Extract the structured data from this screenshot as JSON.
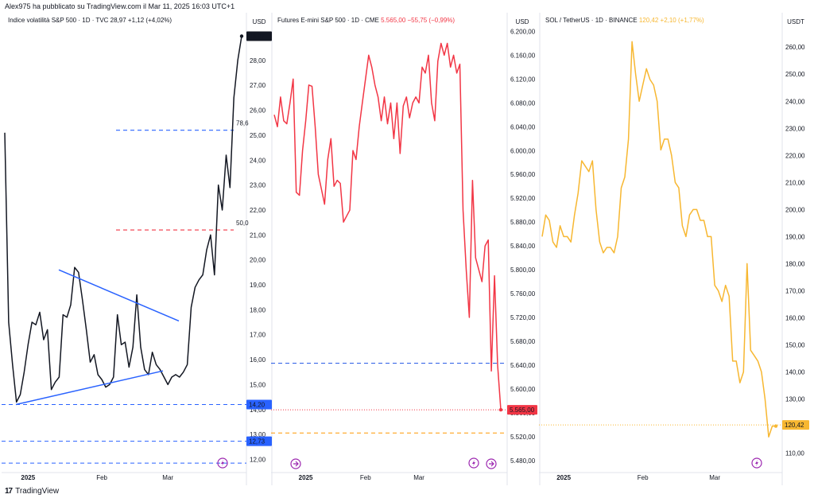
{
  "caption": "Alex975 ha pubblicato su TradingView.com il Mar 11, 2025 16:03 UTC+1",
  "footer": {
    "brand": "TradingView"
  },
  "chart_data": [
    {
      "type": "line",
      "title": "Indice volatilità S&P 500 · 1D · TVC",
      "last_value": "28,97",
      "change": "+1,12 (+4,02%)",
      "currency": "USD",
      "line_color": "#131722",
      "ylim": [
        11.6,
        29.4
      ],
      "y_ticks": [
        "28,00",
        "27,00",
        "26,00",
        "25,00",
        "24,00",
        "23,00",
        "22,00",
        "21,00",
        "20,00",
        "19,00",
        "18,00",
        "17,00",
        "16,00",
        "15,00",
        "14,00",
        "13,00",
        "12,00"
      ],
      "y_tick_values": [
        28,
        27,
        26,
        25,
        24,
        23,
        22,
        21,
        20,
        19,
        18,
        17,
        16,
        15,
        14,
        13,
        12
      ],
      "x_ticks": [
        {
          "label": "2025",
          "i": 6
        },
        {
          "label": "Feb",
          "i": 25
        },
        {
          "label": "Mar",
          "i": 42
        }
      ],
      "series": [
        {
          "values": [
            25.1,
            17.5,
            15.8,
            14.3,
            14.6,
            15.5,
            16.6,
            17.5,
            17.4,
            17.9,
            16.8,
            17.2,
            14.8,
            15.1,
            15.3,
            17.8,
            17.7,
            18.2,
            19.7,
            19.5,
            18.4,
            17.2,
            15.9,
            16.2,
            15.4,
            15.2,
            14.9,
            15.0,
            15.3,
            17.8,
            16.6,
            16.7,
            15.7,
            16.5,
            18.6,
            16.5,
            15.6,
            15.4,
            16.3,
            15.8,
            15.6,
            15.3,
            15.0,
            15.3,
            15.4,
            15.3,
            15.5,
            15.8,
            18.1,
            18.9,
            19.2,
            19.4,
            20.4,
            21.0,
            19.4,
            23.0,
            22.0,
            24.2,
            22.9,
            26.5,
            28.0,
            28.97
          ]
        }
      ],
      "annotations": [
        {
          "label": "78,6",
          "y": 25.2,
          "color": "#2962ff"
        },
        {
          "label": "50,0",
          "y": 21.2,
          "color": "#f23645"
        }
      ],
      "h_lines": [
        {
          "y": 14.2,
          "color": "#2962ff"
        },
        {
          "y": 12.73,
          "color": "#2962ff"
        },
        {
          "y": 11.85,
          "color": "#2962ff"
        }
      ],
      "price_labels": [
        {
          "text": "28,97",
          "y": 28.97,
          "bg": "#131722"
        },
        {
          "text": "14,20",
          "y": 14.2,
          "bg": "#2962ff"
        },
        {
          "text": "12,73",
          "y": 12.73,
          "bg": "#2962ff"
        }
      ]
    },
    {
      "type": "line",
      "title": "Futures E-mini S&P 500 · 1D · CME",
      "last_value": "5.565,00",
      "change": "−55,75 (−0,99%)",
      "currency": "USD",
      "line_color": "#f23645",
      "ylim": [
        5465,
        6210
      ],
      "y_ticks": [
        "6.200,00",
        "6.160,00",
        "6.120,00",
        "6.080,00",
        "6.040,00",
        "6.000,00",
        "5.960,00",
        "5.920,00",
        "5.880,00",
        "5.840,00",
        "5.800,00",
        "5.760,00",
        "5.720,00",
        "5.680,00",
        "5.640,00",
        "5.600,00",
        "5.560,00",
        "5.520,00",
        "5.480,00"
      ],
      "y_tick_values": [
        6200,
        6160,
        6120,
        6080,
        6040,
        6000,
        5960,
        5920,
        5880,
        5840,
        5800,
        5760,
        5720,
        5680,
        5640,
        5600,
        5560,
        5520,
        5480
      ],
      "x_ticks": [
        {
          "label": "2025",
          "i": 10
        },
        {
          "label": "Feb",
          "i": 29
        },
        {
          "label": "Mar",
          "i": 46
        }
      ],
      "series": [
        {
          "values": [
            6060,
            6040,
            6090,
            6050,
            6045,
            6080,
            6120,
            5930,
            5925,
            6000,
            6050,
            6110,
            6108,
            6040,
            5960,
            5935,
            5910,
            5985,
            6020,
            5940,
            5950,
            5945,
            5880,
            5890,
            5900,
            6000,
            5985,
            6040,
            6080,
            6120,
            6160,
            6140,
            6110,
            6090,
            6050,
            6090,
            6045,
            6080,
            6020,
            6080,
            5995,
            6075,
            6090,
            6055,
            6080,
            6090,
            6080,
            6140,
            6130,
            6160,
            6080,
            6050,
            6150,
            6180,
            6160,
            6180,
            6140,
            6160,
            6130,
            6145,
            5900,
            5800,
            5720,
            5950,
            5820,
            5800,
            5780,
            5840,
            5850,
            5630,
            5790,
            5640,
            5565
          ]
        }
      ],
      "h_lines": [
        {
          "y": 5643,
          "color": "#1e53e5"
        },
        {
          "y": 5526,
          "color": "#ff9800"
        },
        {
          "y": 5565,
          "color": "#f23645",
          "dotted": true
        }
      ],
      "price_labels": [
        {
          "text": "5.565,00",
          "y": 5565,
          "bg": "#f23645"
        }
      ]
    },
    {
      "type": "line",
      "title": "SOL / TetherUS · 1D · BINANCE",
      "last_value": "120,42",
      "change": "+2,10 (+1,77%)",
      "currency": "USDT",
      "line_color": "#f7b731",
      "ylim": [
        104,
        268
      ],
      "y_ticks": [
        "260,00",
        "250,00",
        "240,00",
        "230,00",
        "220,00",
        "210,00",
        "200,00",
        "190,00",
        "180,00",
        "170,00",
        "160,00",
        "150,00",
        "140,00",
        "130,00",
        "120,00",
        "110,00"
      ],
      "y_tick_values": [
        260,
        250,
        240,
        230,
        220,
        210,
        200,
        190,
        180,
        170,
        160,
        150,
        140,
        130,
        120,
        110
      ],
      "x_ticks": [
        {
          "label": "2025",
          "i": 6
        },
        {
          "label": "Feb",
          "i": 28
        },
        {
          "label": "Mar",
          "i": 48
        }
      ],
      "series": [
        {
          "values": [
            190,
            198,
            196,
            188,
            186,
            194,
            190,
            190,
            188,
            198,
            206,
            218,
            216,
            214,
            218,
            200,
            188,
            184,
            186,
            186,
            184,
            190,
            208,
            212,
            226,
            262,
            250,
            240,
            246,
            252,
            248,
            246,
            240,
            222,
            226,
            226,
            220,
            210,
            208,
            194,
            190,
            198,
            200,
            200,
            196,
            196,
            190,
            190,
            172,
            170,
            166,
            172,
            168,
            144,
            144,
            136,
            140,
            180,
            148,
            146,
            144,
            140,
            130,
            116,
            120,
            120
          ]
        }
      ],
      "h_lines": [
        {
          "y": 120.42,
          "color": "#f7b731",
          "dotted": true
        }
      ],
      "price_labels": [
        {
          "text": "120,42",
          "y": 120.42,
          "bg": "#f7b731"
        }
      ]
    }
  ]
}
